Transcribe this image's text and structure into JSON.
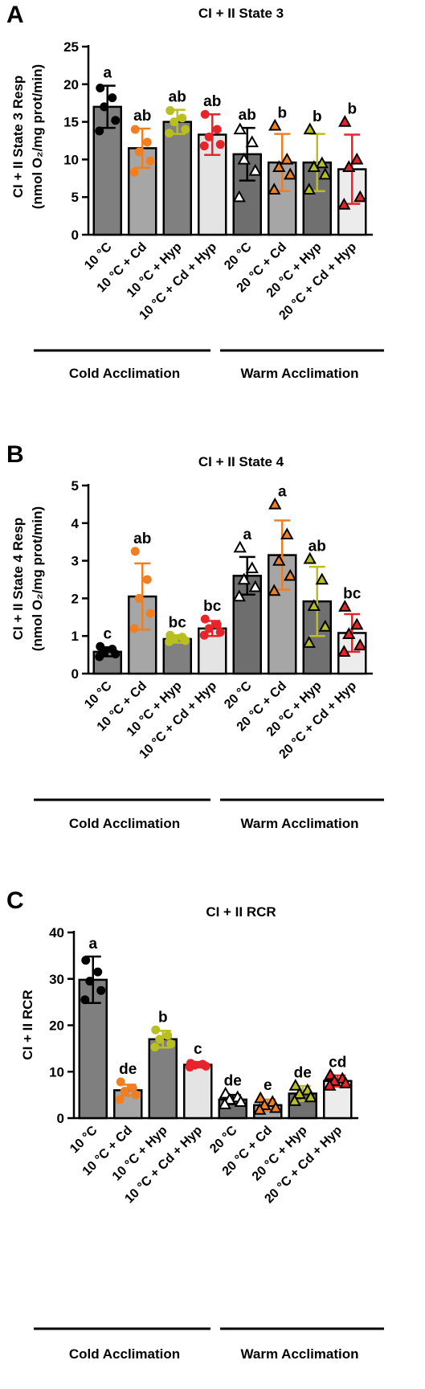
{
  "chart_data": [
    {
      "type": "bar",
      "panel": "A",
      "title": "CI + II State 3",
      "ylabel_line1": "CI + II State 3 Resp",
      "ylabel_line2": "(nmol O₂/mg prot/min)",
      "ylim": [
        0,
        25
      ],
      "yticks": [
        0,
        5,
        10,
        15,
        20,
        25
      ],
      "categories": [
        "10 °C",
        "10 °C + Cd",
        "10 °C + Hyp",
        "10 °C + Cd + Hyp",
        "20 °C",
        "20 °C + Cd",
        "20 °C + Hyp",
        "20 °C + Cd + Hyp"
      ],
      "values": [
        17.0,
        11.5,
        15.0,
        13.3,
        10.7,
        9.6,
        9.6,
        8.7
      ],
      "sd": [
        2.8,
        2.6,
        1.6,
        2.7,
        3.5,
        3.8,
        3.8,
        4.6
      ],
      "points": [
        [
          19.5,
          18.2,
          17.0,
          15.2,
          13.8
        ],
        [
          14.0,
          12.3,
          11.0,
          9.8,
          8.3
        ],
        [
          16.5,
          15.5,
          15.0,
          14.0,
          13.5
        ],
        [
          16.0,
          14.0,
          13.0,
          12.0,
          11.8
        ],
        [
          14.0,
          12.3,
          10.0,
          8.5,
          5.0
        ],
        [
          14.5,
          10.0,
          9.0,
          8.0,
          6.0
        ],
        [
          14.0,
          9.5,
          9.0,
          8.0,
          6.0
        ],
        [
          15.0,
          10.0,
          9.0,
          5.0,
          4.0
        ]
      ],
      "letters": [
        "a",
        "ab",
        "ab",
        "ab",
        "ab",
        "b",
        "b",
        "b"
      ],
      "groups": [
        "Cold Acclimation",
        "Warm Acclimation"
      ]
    },
    {
      "type": "bar",
      "panel": "B",
      "title": "CI + II State 4",
      "ylabel_line1": "CI + II State 4 Resp",
      "ylabel_line2": "(nmol O₂/mg prot/min)",
      "ylim": [
        0,
        5
      ],
      "yticks": [
        0,
        1,
        2,
        3,
        4,
        5
      ],
      "categories": [
        "10 °C",
        "10 °C + Cd",
        "10 °C + Hyp",
        "10 °C + Cd + Hyp",
        "20 °C",
        "20 °C + Cd",
        "20 °C + Hyp",
        "20 °C + Cd + Hyp"
      ],
      "values": [
        0.58,
        2.05,
        0.92,
        1.2,
        2.6,
        3.15,
        1.92,
        1.08
      ],
      "sd": [
        0.12,
        0.88,
        0.1,
        0.2,
        0.5,
        0.92,
        0.92,
        0.5
      ],
      "points": [
        [
          0.72,
          0.65,
          0.58,
          0.52,
          0.45
        ],
        [
          3.25,
          2.5,
          2.0,
          1.6,
          1.2
        ],
        [
          1.02,
          0.97,
          0.93,
          0.88,
          0.85
        ],
        [
          1.45,
          1.3,
          1.2,
          1.1,
          1.02
        ],
        [
          3.35,
          2.8,
          2.5,
          2.3,
          2.05
        ],
        [
          4.5,
          3.7,
          3.0,
          2.6,
          2.2
        ],
        [
          3.05,
          2.5,
          1.8,
          1.25,
          0.82
        ],
        [
          1.78,
          1.3,
          1.05,
          0.75,
          0.58
        ]
      ],
      "letters": [
        "c",
        "ab",
        "bc",
        "bc",
        "a",
        "a",
        "ab",
        "bc"
      ],
      "groups": [
        "Cold Acclimation",
        "Warm Acclimation"
      ]
    },
    {
      "type": "bar",
      "panel": "C",
      "title": "CI + II RCR",
      "ylabel_line1": "CI + II RCR",
      "ylabel_line2": "",
      "ylim": [
        0,
        40
      ],
      "yticks": [
        0,
        10,
        20,
        30,
        40
      ],
      "categories": [
        "10 °C",
        "10 °C + Cd",
        "10 °C + Hyp",
        "10 °C + Cd + Hyp",
        "20 °C",
        "20 °C + Cd",
        "20 °C + Hyp",
        "20 °C + Cd + Hyp"
      ],
      "values": [
        29.8,
        6.0,
        17.0,
        11.5,
        4.0,
        2.8,
        5.3,
        8.0
      ],
      "sd": [
        5.0,
        1.2,
        1.8,
        0.6,
        1.0,
        1.2,
        1.6,
        1.2
      ],
      "points": [
        [
          34.0,
          31.5,
          29.5,
          27.5,
          25.5
        ],
        [
          7.8,
          6.5,
          5.8,
          5.0,
          4.0
        ],
        [
          19.0,
          17.8,
          17.0,
          16.0,
          15.3
        ],
        [
          11.8,
          11.6,
          11.4,
          11.2,
          11.0
        ],
        [
          5.3,
          4.5,
          4.0,
          3.5,
          3.0
        ],
        [
          4.3,
          3.5,
          2.8,
          2.2,
          1.8
        ],
        [
          7.0,
          6.0,
          5.2,
          4.5,
          3.7
        ],
        [
          9.3,
          8.5,
          8.0,
          7.5,
          7.0
        ]
      ],
      "letters": [
        "a",
        "de",
        "b",
        "c",
        "de",
        "e",
        "de",
        "cd"
      ],
      "groups": [
        "Cold Acclimation",
        "Warm Acclimation"
      ]
    }
  ],
  "style": {
    "bar_fills": [
      "#7f7f7f",
      "#a6a6a6",
      "#808080",
      "#e4e4e4",
      "#6e6e6e",
      "#a6a6a6",
      "#707070",
      "#ececec"
    ],
    "error_colors": [
      "#000000",
      "#f07f22",
      "#b8bf1f",
      "#e8242a",
      "#000000",
      "#f07f22",
      "#b8bf1f",
      "#e8242a"
    ],
    "point_colors": [
      "#000000",
      "#f07f22",
      "#b8bf1f",
      "#e8242a",
      "#ffffff",
      "#f07f22",
      "#b8bf1f",
      "#e8242a"
    ],
    "point_shapes": [
      "circle",
      "circle",
      "circle",
      "circle",
      "triangle",
      "triangle",
      "triangle",
      "triangle"
    ],
    "legend": "none",
    "grid": "off"
  }
}
